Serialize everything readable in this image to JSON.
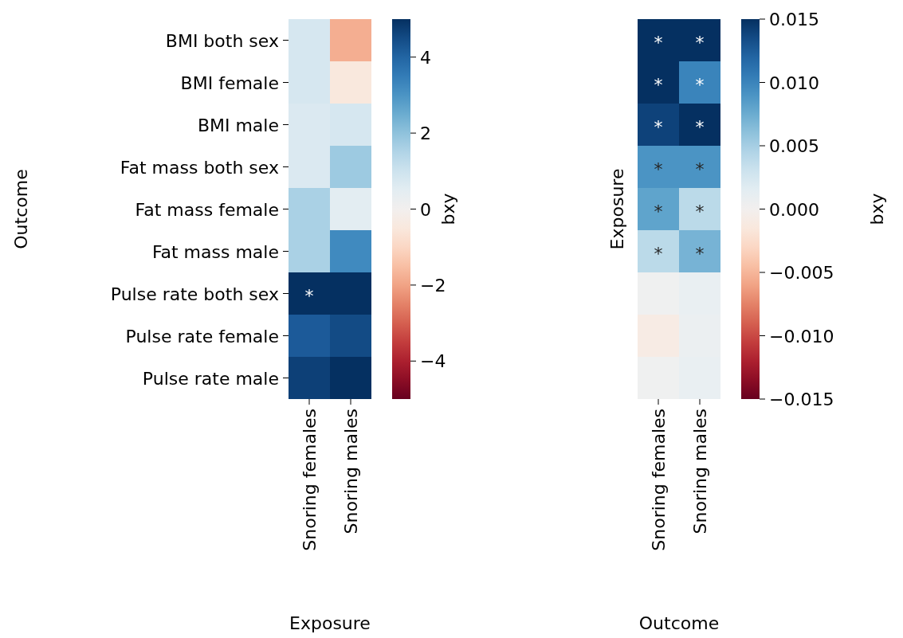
{
  "chart_data": [
    {
      "type": "heatmap",
      "xlabel": "Exposure",
      "ylabel": "Outcome",
      "clabel": "bxy",
      "categories": [
        "Snoring females",
        "Snoring males"
      ],
      "y_categories": [
        "BMI both sex",
        "BMI female",
        "BMI male",
        "Fat mass both sex",
        "Fat mass female",
        "Fat mass male",
        "Pulse rate both sex",
        "Pulse rate female",
        "Pulse rate male"
      ],
      "cells": [
        [
          0.8,
          -1.8
        ],
        [
          0.8,
          -0.5
        ],
        [
          0.7,
          0.8
        ],
        [
          0.7,
          1.8
        ],
        [
          1.6,
          0.5
        ],
        [
          1.6,
          3.2
        ],
        [
          5.0,
          5.0
        ],
        [
          4.2,
          4.5
        ],
        [
          4.7,
          5.0
        ]
      ],
      "cell_labels": [
        [
          null,
          null
        ],
        [
          null,
          null
        ],
        [
          null,
          null
        ],
        [
          null,
          null
        ],
        [
          null,
          null
        ],
        [
          null,
          null
        ],
        [
          "*",
          null
        ],
        [
          null,
          null
        ],
        [
          null,
          null
        ]
      ],
      "clim": [
        -5,
        5
      ],
      "cticks": [
        {
          "value": -4,
          "label": "−4"
        },
        {
          "value": -2,
          "label": "−2"
        },
        0,
        2,
        4
      ]
    },
    {
      "type": "heatmap",
      "xlabel": "Outcome",
      "ylabel": "Exposure",
      "clabel": "bxy",
      "categories": [
        "Snoring females",
        "Snoring males"
      ],
      "y_categories": [
        null,
        null,
        null,
        null,
        null,
        null,
        null,
        null,
        null
      ],
      "cells": [
        [
          0.015,
          0.015
        ],
        [
          0.015,
          0.01
        ],
        [
          0.014,
          0.015
        ],
        [
          0.009,
          0.009
        ],
        [
          0.008,
          0.004
        ],
        [
          0.004,
          0.007
        ],
        [
          0.0003,
          0.001
        ],
        [
          -0.001,
          0.0008
        ],
        [
          0.0003,
          0.001
        ]
      ],
      "cell_labels": [
        [
          "*",
          "*"
        ],
        [
          "*",
          "*"
        ],
        [
          "*",
          "*"
        ],
        [
          "*",
          "*"
        ],
        [
          "*",
          "*"
        ],
        [
          "*",
          "*"
        ],
        [
          null,
          null
        ],
        [
          null,
          null
        ],
        [
          null,
          null
        ]
      ],
      "clim": [
        -0.015,
        0.015
      ],
      "cticks": [
        {
          "value": -0.015,
          "label": "−0.015"
        },
        {
          "value": -0.01,
          "label": "−0.010"
        },
        {
          "value": -0.005,
          "label": "−0.005"
        },
        {
          "value": 0,
          "label": "0.000"
        },
        {
          "value": 0.005,
          "label": "0.005"
        },
        {
          "value": 0.01,
          "label": "0.010"
        },
        {
          "value": 0.015,
          "label": "0.015"
        }
      ],
      "tick_labels": "x"
    }
  ]
}
